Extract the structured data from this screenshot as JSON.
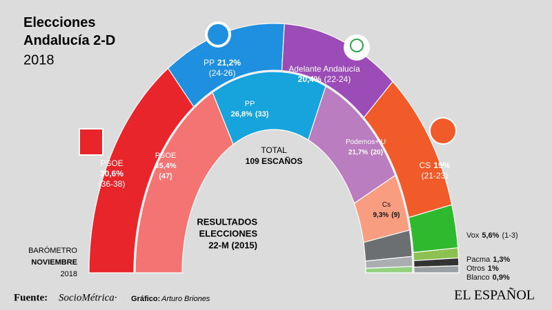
{
  "chart_data": {
    "type": "donut",
    "title": "Elecciones Andalucía 2-D",
    "subtitle": "2018",
    "outer_caption": [
      "BARÓMETRO",
      "NOVIEMBRE",
      "2018"
    ],
    "inner_caption": [
      "RESULTADOS",
      "ELECCIONES",
      "22-M (2015)"
    ],
    "center_label": [
      "TOTAL",
      "109 ESCAÑOS"
    ],
    "outer": {
      "categories": [
        "PSOE",
        "PP",
        "Adelante Andalucía",
        "CS",
        "Vox",
        "Pacma",
        "Otros",
        "Blanco"
      ],
      "values": [
        30.6,
        21.2,
        20.4,
        19,
        5.6,
        1.3,
        1,
        0.9
      ],
      "value_labels": [
        "30,6%",
        "21,2%",
        "20,4%",
        "19%",
        "5,6%",
        "1,3%",
        "1%",
        "0,9%"
      ],
      "seats": [
        "(36-38)",
        "(24-26)",
        "(22-24)",
        "(21-23)",
        "(1-3)",
        null,
        null,
        null
      ],
      "colors": [
        "#e8252b",
        "#1f8fe0",
        "#9c4cb6",
        "#f15a29",
        "#2fb92f",
        "#8cc152",
        "#333333",
        "#9aa0a4"
      ]
    },
    "inner": {
      "categories": [
        "PSOE",
        "PP",
        "Podemos+IU",
        "Cs",
        null,
        null,
        null
      ],
      "values": [
        35.4,
        26.8,
        21.7,
        9.3,
        4.2,
        1.6,
        1.0
      ],
      "value_labels": [
        "35,4%",
        "26,8%",
        "21,7%",
        "9,3%",
        null,
        null,
        null
      ],
      "seats": [
        "(47)",
        "(33)",
        "(20)",
        "(9)",
        null,
        null,
        null
      ],
      "colors": [
        "#f47474",
        "#17a4dc",
        "#b97dc0",
        "#f99d80",
        "#6b6f71",
        "#aaaeb1",
        "#92d27f"
      ]
    },
    "source": "Fuente:",
    "source_name": "SocioMétrica·",
    "credit": "Gráfico:",
    "credit_name": "Arturo Briones",
    "brand": "EL ESPAÑOL"
  }
}
